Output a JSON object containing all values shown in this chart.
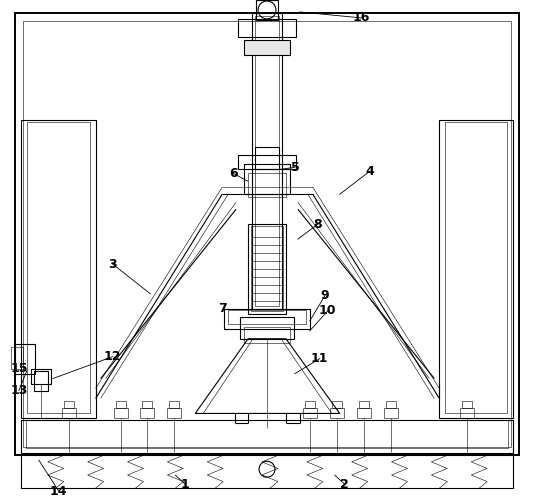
{
  "bg_color": "#ffffff",
  "lc": "#000000",
  "lw": 0.8,
  "tlw": 0.4,
  "thk": 1.4
}
